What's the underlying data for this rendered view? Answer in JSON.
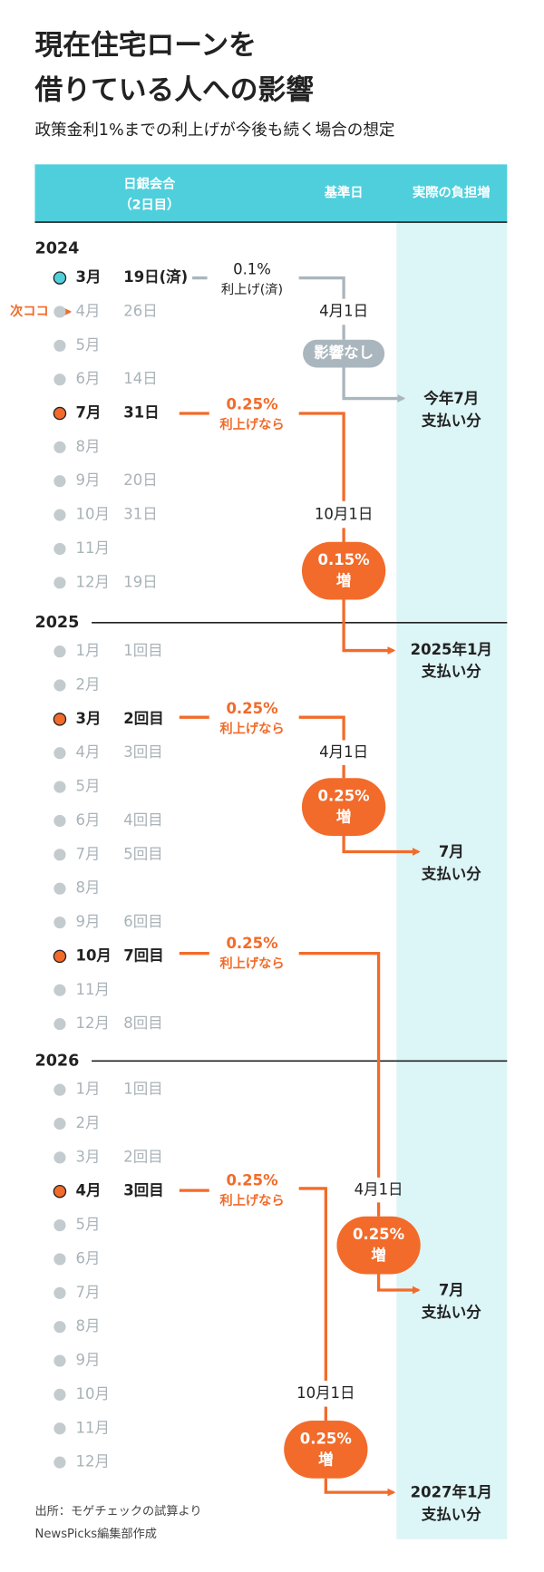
{
  "header": {
    "title": [
      "現在住宅ローンを",
      "借りている人への影響"
    ],
    "subtitle": "政策金利1%までの利上げが今後も続く場合の想定"
  },
  "columns": {
    "meeting": [
      "日銀会合",
      "（2日目）"
    ],
    "base_date": "基準日",
    "burden": "実際の負担増"
  },
  "marker": "次ココ",
  "years": [
    {
      "year": "2024",
      "meetings": [
        {
          "month": "3月",
          "detail": "19日(済)",
          "status": "done"
        },
        {
          "month": "4月",
          "detail": "26日",
          "status": "next"
        },
        {
          "month": "5月",
          "status": "none"
        },
        {
          "month": "6月",
          "detail": "14日",
          "status": "none"
        },
        {
          "month": "7月",
          "detail": "31日",
          "status": "hike"
        },
        {
          "month": "8月",
          "status": "none"
        },
        {
          "month": "9月",
          "detail": "20日",
          "status": "none"
        },
        {
          "month": "10月",
          "detail": "31日",
          "status": "none"
        },
        {
          "month": "11月",
          "status": "none"
        },
        {
          "month": "12月",
          "detail": "19日",
          "status": "none"
        }
      ]
    },
    {
      "year": "2025",
      "meetings": [
        {
          "month": "1月",
          "detail": "1回目",
          "status": "none"
        },
        {
          "month": "2月",
          "status": "none"
        },
        {
          "month": "3月",
          "detail": "2回目",
          "status": "hike"
        },
        {
          "month": "4月",
          "detail": "3回目",
          "status": "none"
        },
        {
          "month": "5月",
          "status": "none"
        },
        {
          "month": "6月",
          "detail": "4回目",
          "status": "none"
        },
        {
          "month": "7月",
          "detail": "5回目",
          "status": "none"
        },
        {
          "month": "8月",
          "status": "none"
        },
        {
          "month": "9月",
          "detail": "6回目",
          "status": "none"
        },
        {
          "month": "10月",
          "detail": "7回目",
          "status": "hike"
        },
        {
          "month": "11月",
          "status": "none"
        },
        {
          "month": "12月",
          "detail": "8回目",
          "status": "none"
        }
      ]
    },
    {
      "year": "2026",
      "meetings": [
        {
          "month": "1月",
          "detail": "1回目",
          "status": "none"
        },
        {
          "month": "2月",
          "status": "none"
        },
        {
          "month": "3月",
          "detail": "2回目",
          "status": "none"
        },
        {
          "month": "4月",
          "detail": "3回目",
          "status": "hike"
        },
        {
          "month": "5月",
          "status": "none"
        },
        {
          "month": "6月",
          "status": "none"
        },
        {
          "month": "7月",
          "status": "none"
        },
        {
          "month": "8月",
          "status": "none"
        },
        {
          "month": "9月",
          "status": "none"
        },
        {
          "month": "10月",
          "status": "none"
        },
        {
          "month": "11月",
          "status": "none"
        },
        {
          "month": "12月",
          "status": "none"
        }
      ]
    }
  ],
  "hikes": [
    {
      "rate": "0.1%",
      "note": "利上げ(済)"
    },
    {
      "rate": "0.25%",
      "note": "利上げなら"
    },
    {
      "rate": "0.25%",
      "note": "利上げなら"
    },
    {
      "rate": "0.25%",
      "note": "利上げなら"
    },
    {
      "rate": "0.25%",
      "note": "利上げなら"
    }
  ],
  "base_dates": [
    "4月1日",
    "10月1日",
    "4月1日",
    "4月1日",
    "10月1日"
  ],
  "effects": [
    [
      "影響なし"
    ],
    [
      "0.15%",
      "増"
    ],
    [
      "0.25%",
      "増"
    ],
    [
      "0.25%",
      "増"
    ],
    [
      "0.25%",
      "増"
    ]
  ],
  "payments": [
    [
      "今年7月",
      "支払い分"
    ],
    [
      "2025年1月",
      "支払い分"
    ],
    [
      "7月",
      "支払い分"
    ],
    [
      "7月",
      "支払い分"
    ],
    [
      "2027年1月",
      "支払い分"
    ]
  ],
  "footer": [
    "出所：モゲチェックの試算より",
    "NewsPicks編集部作成"
  ]
}
